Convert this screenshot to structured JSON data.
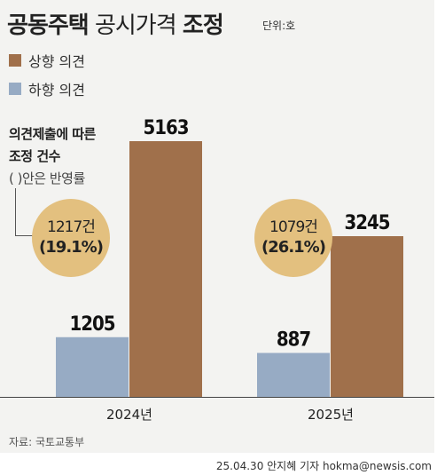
{
  "title": {
    "part1": "공동주택",
    "part2": "공시가격",
    "part3": "조정"
  },
  "unit": "단위:호",
  "colors": {
    "up": "#a0704b",
    "down": "#97abc4",
    "circle": "#e3c07f",
    "background": "#f3f3f1"
  },
  "notes": {
    "line1": "의견제출에 따른",
    "line2": "조정 건수",
    "line3": "( )안은 반영률"
  },
  "chart_data": {
    "type": "bar",
    "categories": [
      "2024년",
      "2025년"
    ],
    "series": [
      {
        "name": "하향 의견",
        "values": [
          1205,
          887
        ],
        "labels": [
          "1205",
          "887"
        ]
      },
      {
        "name": "상향 의견",
        "values": [
          5163,
          3245
        ],
        "labels": [
          "5163",
          "3245"
        ]
      }
    ],
    "adjusted": [
      {
        "count": "1217건",
        "rate": "(19.1%)"
      },
      {
        "count": "1079건",
        "rate": "(26.1%)"
      }
    ],
    "ylim": [
      0,
      5163
    ],
    "legend_position": "top-left"
  },
  "source": "자료: 국토교통부",
  "credit": "25.04.30 안지혜 기자 hokma@newsis.com"
}
